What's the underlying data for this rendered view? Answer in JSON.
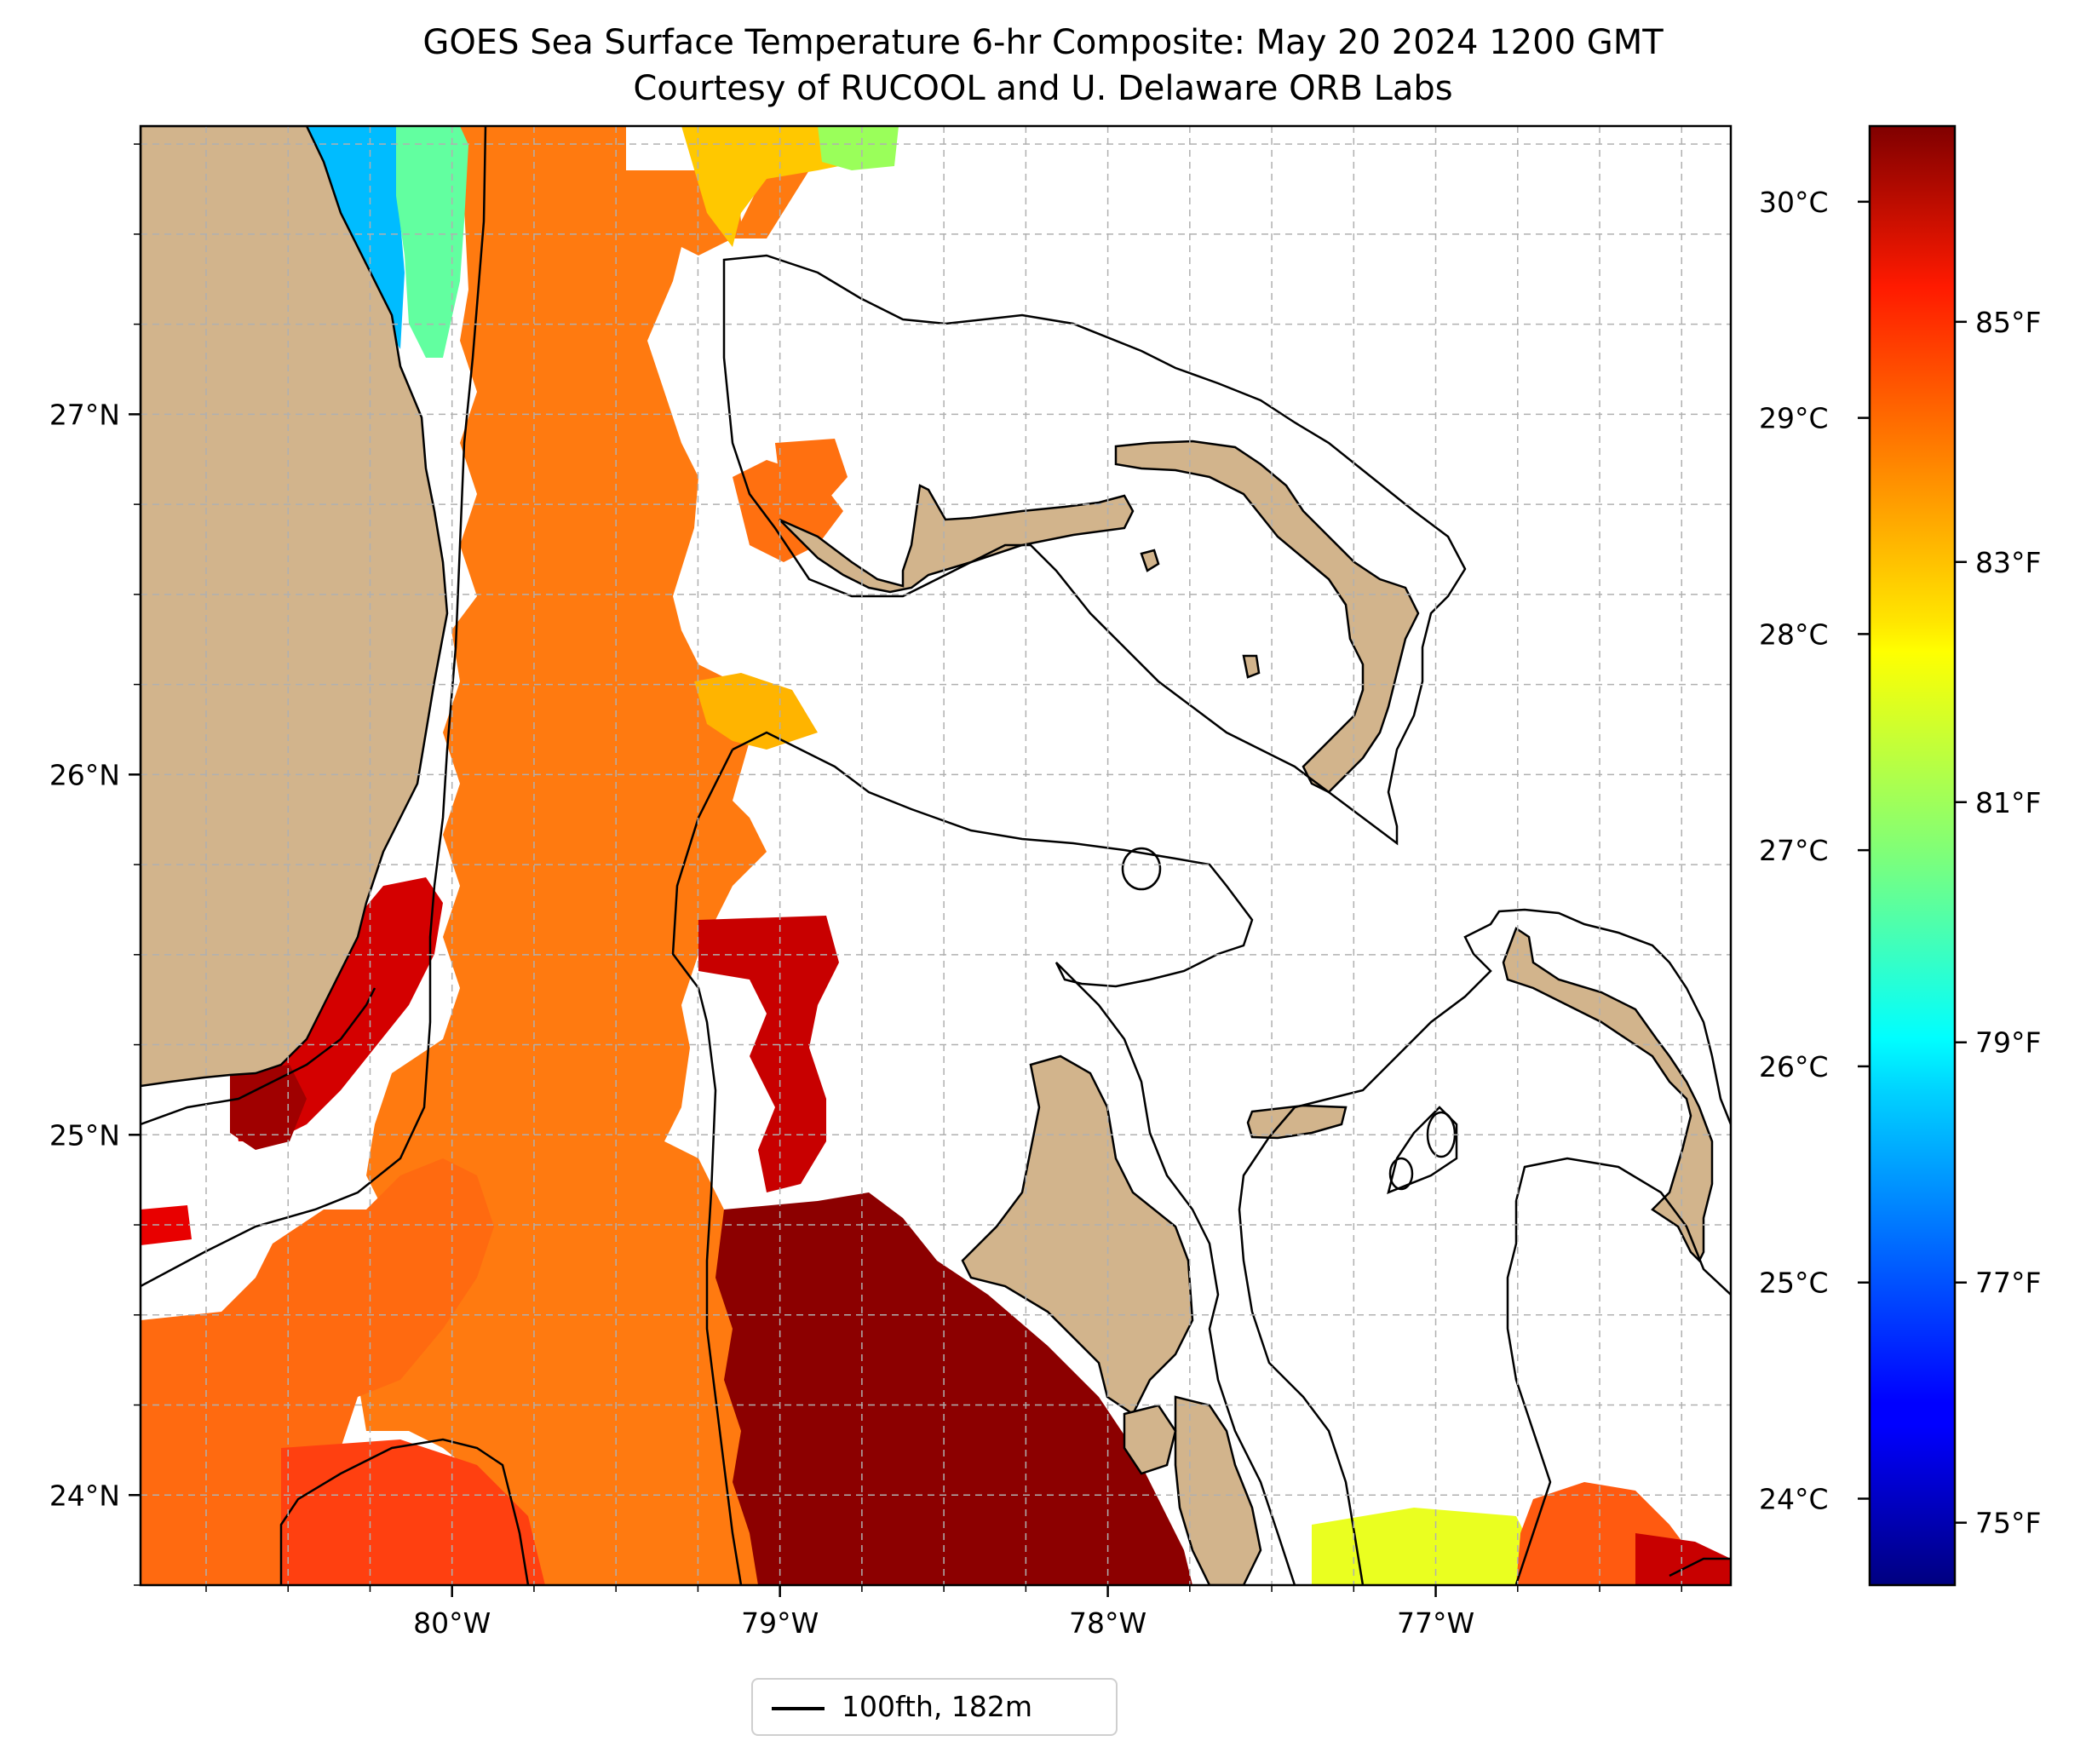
{
  "title": {
    "line1": "GOES Sea Surface Temperature 6-hr Composite: May 20 2024 1200 GMT",
    "line2": "Courtesy of RUCOOL and U. Delaware ORB Labs"
  },
  "map": {
    "extent": {
      "lon_min": -80.95,
      "lon_max": -76.1,
      "lat_min": 23.75,
      "lat_max": 27.8
    },
    "lat_ticks": [
      {
        "value": 27,
        "label": "27°N"
      },
      {
        "value": 26,
        "label": "26°N"
      },
      {
        "value": 25,
        "label": "25°N"
      },
      {
        "value": 24,
        "label": "24°N"
      }
    ],
    "lon_ticks": [
      {
        "value": -80,
        "label": "80°W"
      },
      {
        "value": -79,
        "label": "79°W"
      },
      {
        "value": -78,
        "label": "78°W"
      },
      {
        "value": -77,
        "label": "77°W"
      }
    ],
    "gridlines": "on (dashed gray, every 0.25°)",
    "colors": {
      "land": "#D2B48C",
      "no_data": "#ffffff",
      "frame": "#000000"
    }
  },
  "colorbar": {
    "colormap": "jet",
    "range_celsius": [
      23.6,
      30.35
    ],
    "celsius_ticks": [
      {
        "value": 24,
        "label": "24°C"
      },
      {
        "value": 25,
        "label": "25°C"
      },
      {
        "value": 26,
        "label": "26°C"
      },
      {
        "value": 27,
        "label": "27°C"
      },
      {
        "value": 28,
        "label": "28°C"
      },
      {
        "value": 29,
        "label": "29°C"
      },
      {
        "value": 30,
        "label": "30°C"
      }
    ],
    "fahrenheit_ticks": [
      {
        "value": 75,
        "label": "75°F"
      },
      {
        "value": 77,
        "label": "77°F"
      },
      {
        "value": 79,
        "label": "79°F"
      },
      {
        "value": 81,
        "label": "81°F"
      },
      {
        "value": 83,
        "label": "83°F"
      },
      {
        "value": 85,
        "label": "85°F"
      }
    ]
  },
  "legend": {
    "label": "100fth, 182m",
    "line_color": "#000000",
    "placement": "bottom-center below map"
  }
}
